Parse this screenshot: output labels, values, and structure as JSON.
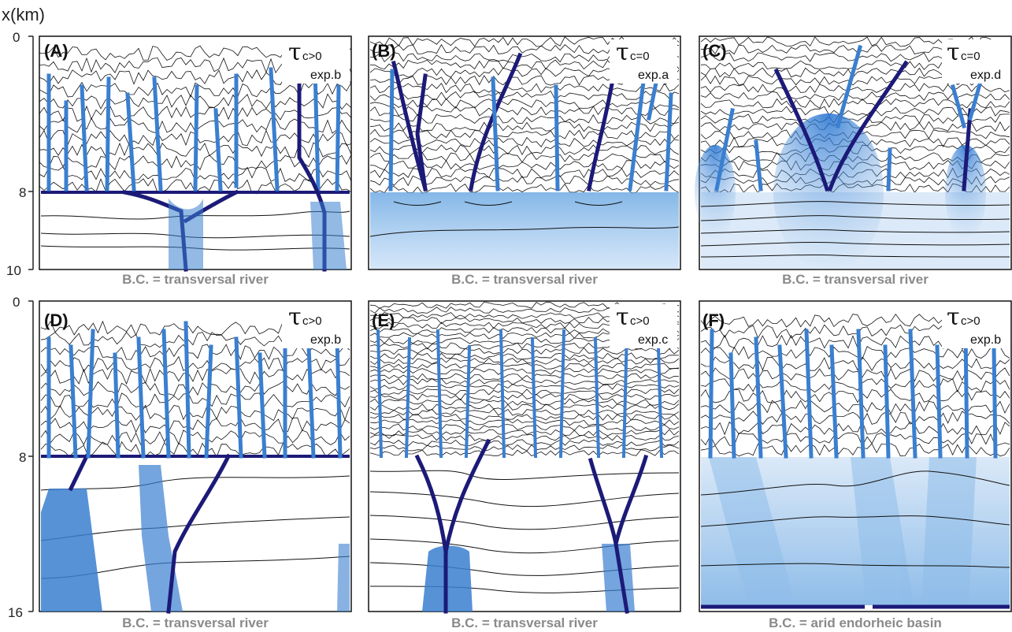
{
  "axis": {
    "label": "x(km)",
    "top_ticks": [
      "0",
      "8",
      "10"
    ],
    "bottom_ticks": [
      "0",
      "8",
      "16"
    ]
  },
  "panels": [
    {
      "letter": "(A)",
      "tau_symbol": "τ",
      "tau_sub": "c>0",
      "experiment": "exp.b",
      "caption": "B.C. = transversal river"
    },
    {
      "letter": "(B)",
      "tau_symbol": "τ",
      "tau_sub": "c=0",
      "experiment": "exp.a",
      "caption": "B.C. = transversal river"
    },
    {
      "letter": "(C)",
      "tau_symbol": "τ",
      "tau_sub": "c=0",
      "experiment": "exp.d",
      "caption": "B.C. = transversal river"
    },
    {
      "letter": "(D)",
      "tau_symbol": "τ",
      "tau_sub": "c>0",
      "experiment": "exp.b",
      "caption": "B.C. = transversal river"
    },
    {
      "letter": "(E)",
      "tau_symbol": "τ",
      "tau_sub": "c>0",
      "experiment": "exp.c",
      "caption": "B.C. = transversal river"
    },
    {
      "letter": "(F)",
      "tau_symbol": "τ",
      "tau_sub": "c>0",
      "experiment": "exp.b",
      "caption": "B.C. = arid endorheic basin"
    }
  ],
  "colors": {
    "channel_dark": "#1c1a78",
    "channel_mid": "#3a7fd0",
    "channel_light": "#8fbde9",
    "caption_gray": "#8a8a8a",
    "contour": "#111111"
  }
}
